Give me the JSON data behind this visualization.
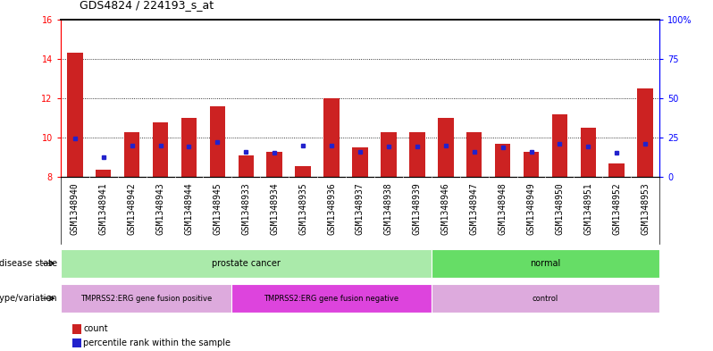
{
  "title": "GDS4824 / 224193_s_at",
  "samples": [
    "GSM1348940",
    "GSM1348941",
    "GSM1348942",
    "GSM1348943",
    "GSM1348944",
    "GSM1348945",
    "GSM1348933",
    "GSM1348934",
    "GSM1348935",
    "GSM1348936",
    "GSM1348937",
    "GSM1348938",
    "GSM1348939",
    "GSM1348946",
    "GSM1348947",
    "GSM1348948",
    "GSM1348949",
    "GSM1348950",
    "GSM1348951",
    "GSM1348952",
    "GSM1348953"
  ],
  "bar_values": [
    14.3,
    8.4,
    10.3,
    10.8,
    11.0,
    11.6,
    9.1,
    9.3,
    8.55,
    12.0,
    9.5,
    10.3,
    10.3,
    11.0,
    10.3,
    9.7,
    9.3,
    11.2,
    10.5,
    8.7,
    12.5
  ],
  "dot_values": [
    9.95,
    9.0,
    9.6,
    9.6,
    9.55,
    9.8,
    9.3,
    9.25,
    9.6,
    9.6,
    9.3,
    9.55,
    9.55,
    9.6,
    9.3,
    9.5,
    9.3,
    9.7,
    9.55,
    9.25,
    9.7
  ],
  "ymin": 8,
  "ymax": 16,
  "yticks": [
    8,
    10,
    12,
    14,
    16
  ],
  "right_ytick_labels": [
    "0",
    "25",
    "50",
    "75",
    "100%"
  ],
  "dotted_lines": [
    10,
    12,
    14
  ],
  "bar_color": "#cc2222",
  "dot_color": "#2222cc",
  "background_color": "#ffffff",
  "plot_bg_color": "#ffffff",
  "disease_state_groups": [
    {
      "label": "prostate cancer",
      "start": 0,
      "end": 13,
      "color": "#aaeaaa"
    },
    {
      "label": "normal",
      "start": 13,
      "end": 21,
      "color": "#66dd66"
    }
  ],
  "genotype_groups": [
    {
      "label": "TMPRSS2:ERG gene fusion positive",
      "start": 0,
      "end": 6,
      "color": "#ddaadd"
    },
    {
      "label": "TMPRSS2:ERG gene fusion negative",
      "start": 6,
      "end": 13,
      "color": "#dd44dd"
    },
    {
      "label": "control",
      "start": 13,
      "end": 21,
      "color": "#ddaadd"
    }
  ],
  "legend_count_label": "count",
  "legend_percentile_label": "percentile rank within the sample",
  "disease_state_label": "disease state",
  "genotype_label": "genotype/variation",
  "sample_bg_color": "#cccccc",
  "tick_fontsize": 7,
  "label_fontsize": 7,
  "title_fontsize": 9
}
